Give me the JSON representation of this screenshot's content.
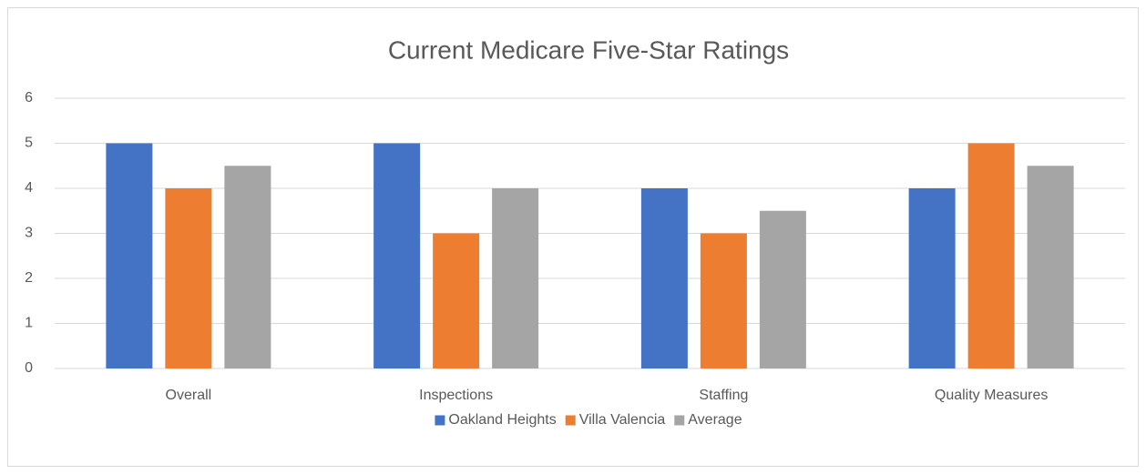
{
  "chart_data": {
    "type": "bar",
    "title": "Current Medicare Five-Star Ratings",
    "categories": [
      "Overall",
      "Inspections",
      "Staffing",
      "Quality Measures"
    ],
    "series": [
      {
        "name": "Oakland Heights",
        "color": "#4472c4",
        "values": [
          5,
          5,
          4,
          4
        ]
      },
      {
        "name": "Villa Valencia",
        "color": "#ed7d31",
        "values": [
          4,
          3,
          3,
          5
        ]
      },
      {
        "name": "Average",
        "color": "#a5a5a5",
        "values": [
          4.5,
          4,
          3.5,
          4.5
        ]
      }
    ],
    "ylim": [
      0,
      6
    ],
    "yticks": [
      0,
      1,
      2,
      3,
      4,
      5,
      6
    ],
    "grid": true,
    "legend": "bottom"
  }
}
